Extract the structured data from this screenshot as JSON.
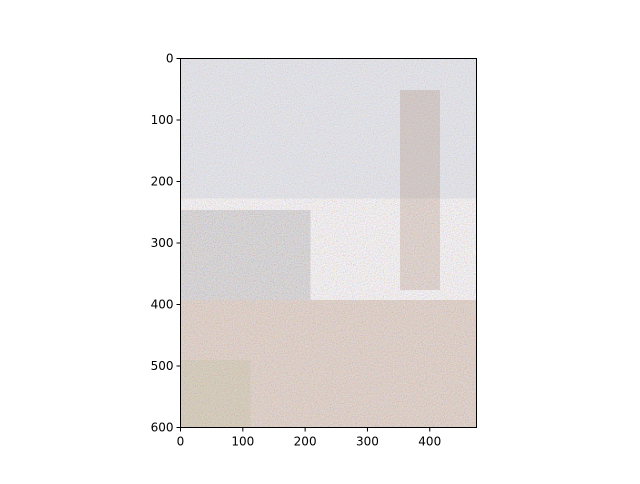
{
  "chart_data": {
    "type": "image",
    "title": "",
    "xlabel": "",
    "ylabel": "",
    "xlim": [
      0,
      475
    ],
    "ylim": [
      600,
      0
    ],
    "x_ticks": [
      0,
      100,
      200,
      300,
      400
    ],
    "y_ticks": [
      0,
      100,
      200,
      300,
      400,
      500,
      600
    ],
    "image_description": "noisy photographic image with speckle pattern; grey/blue and brown tones",
    "grid": false,
    "legend": "none"
  }
}
